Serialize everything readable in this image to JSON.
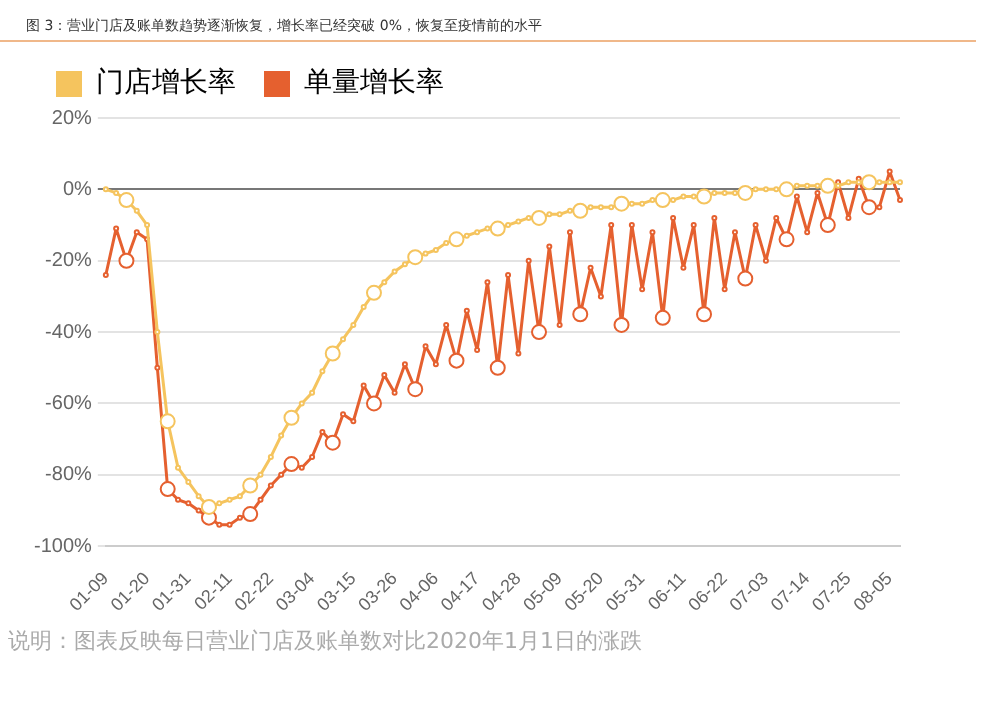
{
  "chart_data": {
    "type": "line",
    "title": "图 3：营业门店及账单数趋势逐渐恢复，增长率已经突破 0%，恢复至疫情前的水平",
    "categories": [
      "01-09",
      null,
      null,
      null,
      "01-20",
      null,
      null,
      null,
      "01-31",
      null,
      null,
      null,
      "02-11",
      null,
      null,
      null,
      "02-22",
      null,
      null,
      null,
      "03-04",
      null,
      null,
      null,
      "03-15",
      null,
      null,
      null,
      "03-26",
      null,
      null,
      null,
      "04-06",
      null,
      null,
      null,
      "04-17",
      null,
      null,
      null,
      "04-28",
      null,
      null,
      null,
      "05-09",
      null,
      null,
      null,
      "05-20",
      null,
      null,
      null,
      "05-31",
      null,
      null,
      null,
      "06-11",
      null,
      null,
      null,
      "06-22",
      null,
      null,
      null,
      "07-03",
      null,
      null,
      null,
      "07-14",
      null,
      null,
      null,
      "07-25",
      null,
      null,
      null,
      "08-05",
      null
    ],
    "series": [
      {
        "name": "门店增长率",
        "color": "#f5c45e",
        "values": [
          0,
          -1,
          -3,
          -6,
          -10,
          -40,
          -65,
          -78,
          -82,
          -86,
          -89,
          -88,
          -87,
          -86,
          -83,
          -80,
          -75,
          -69,
          -64,
          -60,
          -57,
          -51,
          -46,
          -42,
          -38,
          -33,
          -29,
          -26,
          -23,
          -21,
          -19,
          -18,
          -17,
          -15,
          -14,
          -13,
          -12,
          -11,
          -11,
          -10,
          -9,
          -8,
          -8,
          -7,
          -7,
          -6,
          -6,
          -5,
          -5,
          -5,
          -4,
          -4,
          -4,
          -3,
          -3,
          -3,
          -2,
          -2,
          -2,
          -1,
          -1,
          -1,
          -1,
          0,
          0,
          0,
          0,
          1,
          1,
          1,
          1,
          1,
          2,
          2,
          2,
          2,
          2,
          2
        ]
      },
      {
        "name": "单量增长率",
        "color": "#e5602f",
        "values": [
          -24,
          -11,
          -20,
          -12,
          -14,
          -50,
          -84,
          -87,
          -88,
          -90,
          -92,
          -94,
          -94,
          -92,
          -91,
          -87,
          -83,
          -80,
          -77,
          -78,
          -75,
          -68,
          -71,
          -63,
          -65,
          -55,
          -60,
          -52,
          -57,
          -49,
          -56,
          -44,
          -49,
          -38,
          -48,
          -34,
          -45,
          -26,
          -50,
          -24,
          -46,
          -20,
          -40,
          -16,
          -38,
          -12,
          -35,
          -22,
          -30,
          -10,
          -38,
          -10,
          -28,
          -12,
          -36,
          -8,
          -22,
          -10,
          -35,
          -8,
          -28,
          -12,
          -25,
          -10,
          -20,
          -8,
          -14,
          -2,
          -12,
          -1,
          -10,
          2,
          -8,
          3,
          -5,
          -5,
          5,
          -3
        ]
      }
    ],
    "ylim": [
      -100,
      20
    ],
    "yticks": [
      {
        "value": -100,
        "label": "-100%"
      },
      {
        "value": -80,
        "label": "-80%"
      },
      {
        "value": -60,
        "label": "-60%"
      },
      {
        "value": -40,
        "label": "-40%"
      },
      {
        "value": -20,
        "label": "-20%"
      },
      {
        "value": 0,
        "label": "0%"
      },
      {
        "value": 20,
        "label": "20%"
      }
    ],
    "grid": "y",
    "legend": "top left",
    "marker": "circle",
    "line_style": "solid",
    "annotations": [
      "说明：图表反映每日营业门店及账单数对比2020年1月1日的涨跌"
    ]
  }
}
